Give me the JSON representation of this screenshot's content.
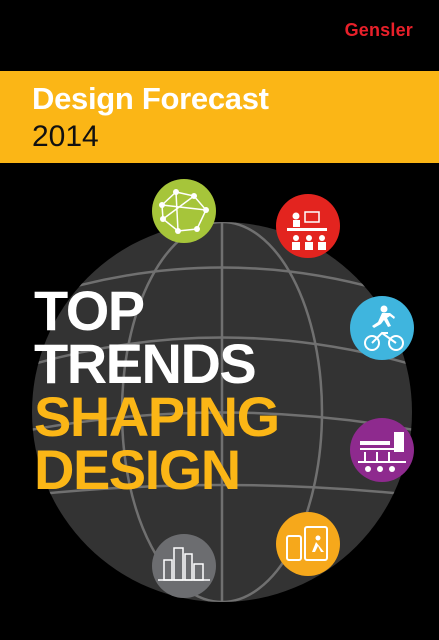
{
  "brand": "Gensler",
  "banner": {
    "title": "Design Forecast",
    "year": "2014"
  },
  "headline": {
    "line1": "TOP",
    "line2": "TRENDS",
    "line3": "SHAPING",
    "line4": "DESIGN"
  },
  "colors": {
    "background": "#000000",
    "banner": "#fbb616",
    "brand": "#e8202a",
    "globe": "#333333",
    "green": "#a6c53a",
    "red": "#e3241f",
    "cyan": "#3fb5de",
    "purple": "#8e2a8e",
    "orange": "#f6a81b",
    "gray": "#6c6d70"
  },
  "icons": [
    "network-people-icon",
    "meeting-icon",
    "running-cyclist-icon",
    "retail-street-icon",
    "mobile-devices-icon",
    "city-skyline-icon"
  ]
}
